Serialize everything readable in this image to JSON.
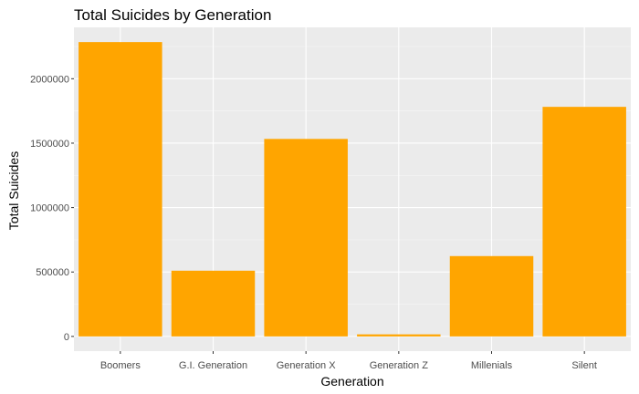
{
  "chart_data": {
    "type": "bar",
    "title": "Total Suicides by Generation",
    "xlabel": "Generation",
    "ylabel": "Total Suicides",
    "categories": [
      "Boomers",
      "G.I. Generation",
      "Generation X",
      "Generation Z",
      "Millenials",
      "Silent"
    ],
    "values": [
      2284498,
      510009,
      1532804,
      15906,
      623459,
      1781744
    ],
    "y_ticks": [
      0,
      500000,
      1000000,
      1500000,
      2000000
    ],
    "y_tick_labels": [
      "0",
      "500000",
      "1000000",
      "1500000",
      "2000000"
    ],
    "ylim": [
      -114225,
      2398723
    ],
    "grid": true,
    "legend": "none",
    "colors": {
      "bar": "#FFA500",
      "panel_background": "#EBEBEB",
      "grid_major": "#FFFFFF",
      "grid_minor": "#F5F5F5"
    }
  }
}
